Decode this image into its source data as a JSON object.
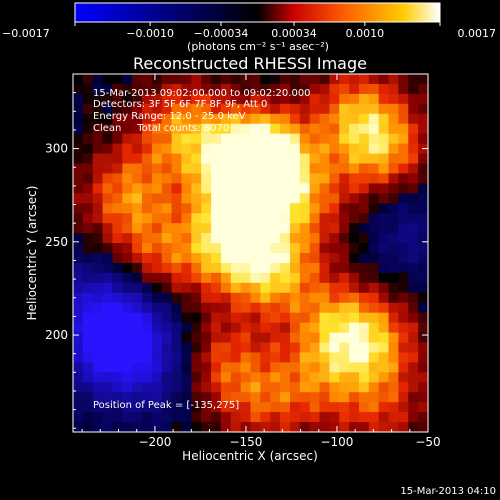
{
  "chart_data": {
    "type": "heatmap",
    "title": "Reconstructed RHESSI Image",
    "xlabel": "Heliocentric X (arcsec)",
    "ylabel": "Heliocentric Y (arcsec)",
    "xlim": [
      -245,
      -50
    ],
    "ylim": [
      148,
      340
    ],
    "x_ticks": [
      -200,
      -150,
      -100,
      -50
    ],
    "x_tick_labels": [
      "−200",
      "−150",
      "−100",
      "−50"
    ],
    "y_ticks": [
      200,
      250,
      300
    ],
    "y_tick_labels": [
      "200",
      "250",
      "300"
    ],
    "colorbar": {
      "range": [
        -0.0017,
        0.0017
      ],
      "ticks": [
        -0.0017,
        -0.001,
        -0.00034,
        0.00034,
        0.001,
        0.0017
      ],
      "tick_labels": [
        "−0.0017",
        "−0.0010",
        "−0.00034",
        "0.00034",
        "0.0010",
        "0.0017"
      ],
      "units": "(photons cm⁻² s⁻¹ asec⁻²)",
      "colors": [
        "#0000ff",
        "#000000",
        "#ff0000",
        "#ff9900",
        "#ffffff"
      ]
    },
    "annotations": [
      "15-Mar-2013 09:02:00.000 to 09:02:20.000",
      "Detectors: 3F 5F 6F 7F 8F 9F, Att 0",
      "Energy Range: 12.0 - 25.0 keV",
      "Clean     Total counts: 8070"
    ],
    "peak_label": "Position of Peak = [-135,275]",
    "peak_position": [
      -135,
      275
    ],
    "sources": [
      {
        "x": -150,
        "y": 285,
        "strength": 0.0017
      },
      {
        "x": -140,
        "y": 295,
        "strength": 0.0016
      },
      {
        "x": -185,
        "y": 310,
        "strength": 0.0011
      },
      {
        "x": -160,
        "y": 250,
        "strength": 0.0013
      },
      {
        "x": -135,
        "y": 235,
        "strength": 0.0012
      },
      {
        "x": -215,
        "y": 275,
        "strength": 0.001
      },
      {
        "x": -200,
        "y": 240,
        "strength": 0.0008
      },
      {
        "x": -115,
        "y": 270,
        "strength": 0.0007
      },
      {
        "x": -75,
        "y": 300,
        "strength": 0.0011
      },
      {
        "x": -90,
        "y": 320,
        "strength": 0.0009
      },
      {
        "x": -80,
        "y": 195,
        "strength": 0.001
      },
      {
        "x": -100,
        "y": 205,
        "strength": 0.0009
      },
      {
        "x": -110,
        "y": 175,
        "strength": 0.0006
      },
      {
        "x": -165,
        "y": 185,
        "strength": 0.0008
      },
      {
        "x": -140,
        "y": 165,
        "strength": 0.0007
      },
      {
        "x": -75,
        "y": 160,
        "strength": 0.0006
      },
      {
        "x": -230,
        "y": 190,
        "strength": -0.001
      },
      {
        "x": -215,
        "y": 205,
        "strength": -0.0012
      },
      {
        "x": -200,
        "y": 180,
        "strength": -0.0008
      },
      {
        "x": -235,
        "y": 220,
        "strength": -0.0007
      },
      {
        "x": -60,
        "y": 255,
        "strength": -0.0006
      }
    ]
  },
  "footer_timestamp": "15-Mar-2013 04:10"
}
